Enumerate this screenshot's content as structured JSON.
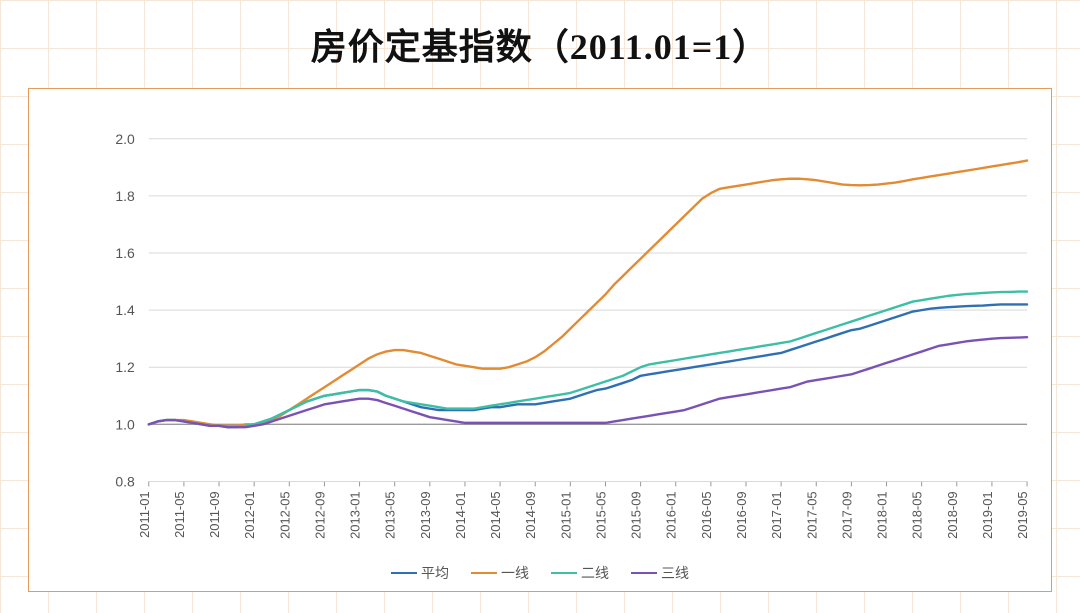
{
  "title": "房价定基指数（2011.01=1）",
  "chart": {
    "type": "line",
    "background_color": "#ffffff",
    "frame_border_color": "#e39a5a",
    "grid_color_major": "#d9d9d9",
    "baseline_color": "#9a9a9a",
    "ylim": [
      0.8,
      2.0
    ],
    "ytick_step": 0.2,
    "yticks": [
      "0.8",
      "1.0",
      "1.2",
      "1.4",
      "1.6",
      "1.8",
      "2.0"
    ],
    "xticks": [
      "2011-01",
      "2011-05",
      "2011-09",
      "2012-01",
      "2012-05",
      "2012-09",
      "2013-01",
      "2013-05",
      "2013-09",
      "2014-01",
      "2014-05",
      "2014-09",
      "2015-01",
      "2015-05",
      "2015-09",
      "2016-01",
      "2016-05",
      "2016-09",
      "2017-01",
      "2017-05",
      "2017-09",
      "2018-01",
      "2018-05",
      "2018-09",
      "2019-01",
      "2019-05"
    ],
    "label_fontsize": 14,
    "xtick_fontsize": 13,
    "line_width": 2.4,
    "series": [
      {
        "name": "平均",
        "color": "#2f6fb3",
        "data": [
          1.0,
          1.01,
          1.015,
          1.015,
          1.01,
          1.005,
          1.0,
          0.995,
          0.995,
          0.99,
          0.99,
          0.995,
          1.0,
          1.01,
          1.02,
          1.035,
          1.05,
          1.065,
          1.08,
          1.09,
          1.1,
          1.105,
          1.11,
          1.115,
          1.12,
          1.12,
          1.115,
          1.1,
          1.09,
          1.08,
          1.07,
          1.06,
          1.055,
          1.05,
          1.05,
          1.05,
          1.05,
          1.05,
          1.055,
          1.06,
          1.06,
          1.065,
          1.07,
          1.07,
          1.07,
          1.075,
          1.08,
          1.085,
          1.09,
          1.1,
          1.11,
          1.12,
          1.125,
          1.135,
          1.145,
          1.155,
          1.17,
          1.175,
          1.18,
          1.185,
          1.19,
          1.195,
          1.2,
          1.205,
          1.21,
          1.215,
          1.22,
          1.225,
          1.23,
          1.235,
          1.24,
          1.245,
          1.25,
          1.26,
          1.27,
          1.28,
          1.29,
          1.3,
          1.31,
          1.32,
          1.33,
          1.335,
          1.345,
          1.355,
          1.365,
          1.375,
          1.385,
          1.395,
          1.4,
          1.405,
          1.408,
          1.41,
          1.412,
          1.414,
          1.415,
          1.416,
          1.418,
          1.42,
          1.42,
          1.42,
          1.42
        ]
      },
      {
        "name": "一线",
        "color": "#e38b32",
        "data": [
          1.0,
          1.01,
          1.015,
          1.015,
          1.015,
          1.01,
          1.005,
          1.0,
          0.995,
          0.995,
          0.995,
          1.0,
          1.0,
          1.005,
          1.015,
          1.03,
          1.05,
          1.07,
          1.09,
          1.11,
          1.13,
          1.15,
          1.17,
          1.19,
          1.21,
          1.23,
          1.245,
          1.255,
          1.26,
          1.26,
          1.255,
          1.25,
          1.24,
          1.23,
          1.22,
          1.21,
          1.205,
          1.2,
          1.195,
          1.195,
          1.195,
          1.2,
          1.21,
          1.22,
          1.235,
          1.255,
          1.28,
          1.305,
          1.335,
          1.365,
          1.395,
          1.425,
          1.455,
          1.49,
          1.52,
          1.55,
          1.58,
          1.61,
          1.64,
          1.67,
          1.7,
          1.73,
          1.76,
          1.79,
          1.81,
          1.825,
          1.83,
          1.835,
          1.84,
          1.845,
          1.85,
          1.855,
          1.858,
          1.86,
          1.86,
          1.858,
          1.855,
          1.85,
          1.845,
          1.84,
          1.838,
          1.837,
          1.838,
          1.84,
          1.843,
          1.847,
          1.852,
          1.858,
          1.863,
          1.868,
          1.873,
          1.878,
          1.883,
          1.888,
          1.893,
          1.898,
          1.903,
          1.908,
          1.913,
          1.918,
          1.924
        ]
      },
      {
        "name": "二线",
        "color": "#3cbfa4",
        "data": [
          1.0,
          1.01,
          1.015,
          1.015,
          1.01,
          1.005,
          1.0,
          0.995,
          0.995,
          0.99,
          0.99,
          0.995,
          1.0,
          1.01,
          1.02,
          1.035,
          1.05,
          1.065,
          1.08,
          1.09,
          1.1,
          1.105,
          1.11,
          1.115,
          1.12,
          1.12,
          1.115,
          1.1,
          1.09,
          1.08,
          1.075,
          1.07,
          1.065,
          1.06,
          1.055,
          1.055,
          1.055,
          1.055,
          1.06,
          1.065,
          1.07,
          1.075,
          1.08,
          1.085,
          1.09,
          1.095,
          1.1,
          1.105,
          1.11,
          1.12,
          1.13,
          1.14,
          1.15,
          1.16,
          1.17,
          1.185,
          1.2,
          1.21,
          1.215,
          1.22,
          1.225,
          1.23,
          1.235,
          1.24,
          1.245,
          1.25,
          1.255,
          1.26,
          1.265,
          1.27,
          1.275,
          1.28,
          1.285,
          1.29,
          1.3,
          1.31,
          1.32,
          1.33,
          1.34,
          1.35,
          1.36,
          1.37,
          1.38,
          1.39,
          1.4,
          1.41,
          1.42,
          1.43,
          1.435,
          1.44,
          1.445,
          1.45,
          1.453,
          1.456,
          1.458,
          1.46,
          1.462,
          1.463,
          1.464,
          1.465,
          1.465
        ]
      },
      {
        "name": "三线",
        "color": "#7a52b5",
        "data": [
          1.0,
          1.01,
          1.015,
          1.015,
          1.01,
          1.005,
          1.0,
          0.995,
          0.995,
          0.99,
          0.99,
          0.99,
          0.995,
          1.0,
          1.01,
          1.02,
          1.03,
          1.04,
          1.05,
          1.06,
          1.07,
          1.075,
          1.08,
          1.085,
          1.09,
          1.09,
          1.085,
          1.075,
          1.065,
          1.055,
          1.045,
          1.035,
          1.025,
          1.02,
          1.015,
          1.01,
          1.005,
          1.005,
          1.005,
          1.005,
          1.005,
          1.005,
          1.005,
          1.005,
          1.005,
          1.005,
          1.005,
          1.005,
          1.005,
          1.005,
          1.005,
          1.005,
          1.005,
          1.01,
          1.015,
          1.02,
          1.025,
          1.03,
          1.035,
          1.04,
          1.045,
          1.05,
          1.06,
          1.07,
          1.08,
          1.09,
          1.095,
          1.1,
          1.105,
          1.11,
          1.115,
          1.12,
          1.125,
          1.13,
          1.14,
          1.15,
          1.155,
          1.16,
          1.165,
          1.17,
          1.175,
          1.185,
          1.195,
          1.205,
          1.215,
          1.225,
          1.235,
          1.245,
          1.255,
          1.265,
          1.275,
          1.28,
          1.285,
          1.29,
          1.294,
          1.297,
          1.3,
          1.302,
          1.303,
          1.304,
          1.305
        ]
      }
    ],
    "legend_labels": [
      "平均",
      "一线",
      "二线",
      "三线"
    ],
    "legend_colors": [
      "#2f6fb3",
      "#e38b32",
      "#3cbfa4",
      "#7a52b5"
    ]
  }
}
